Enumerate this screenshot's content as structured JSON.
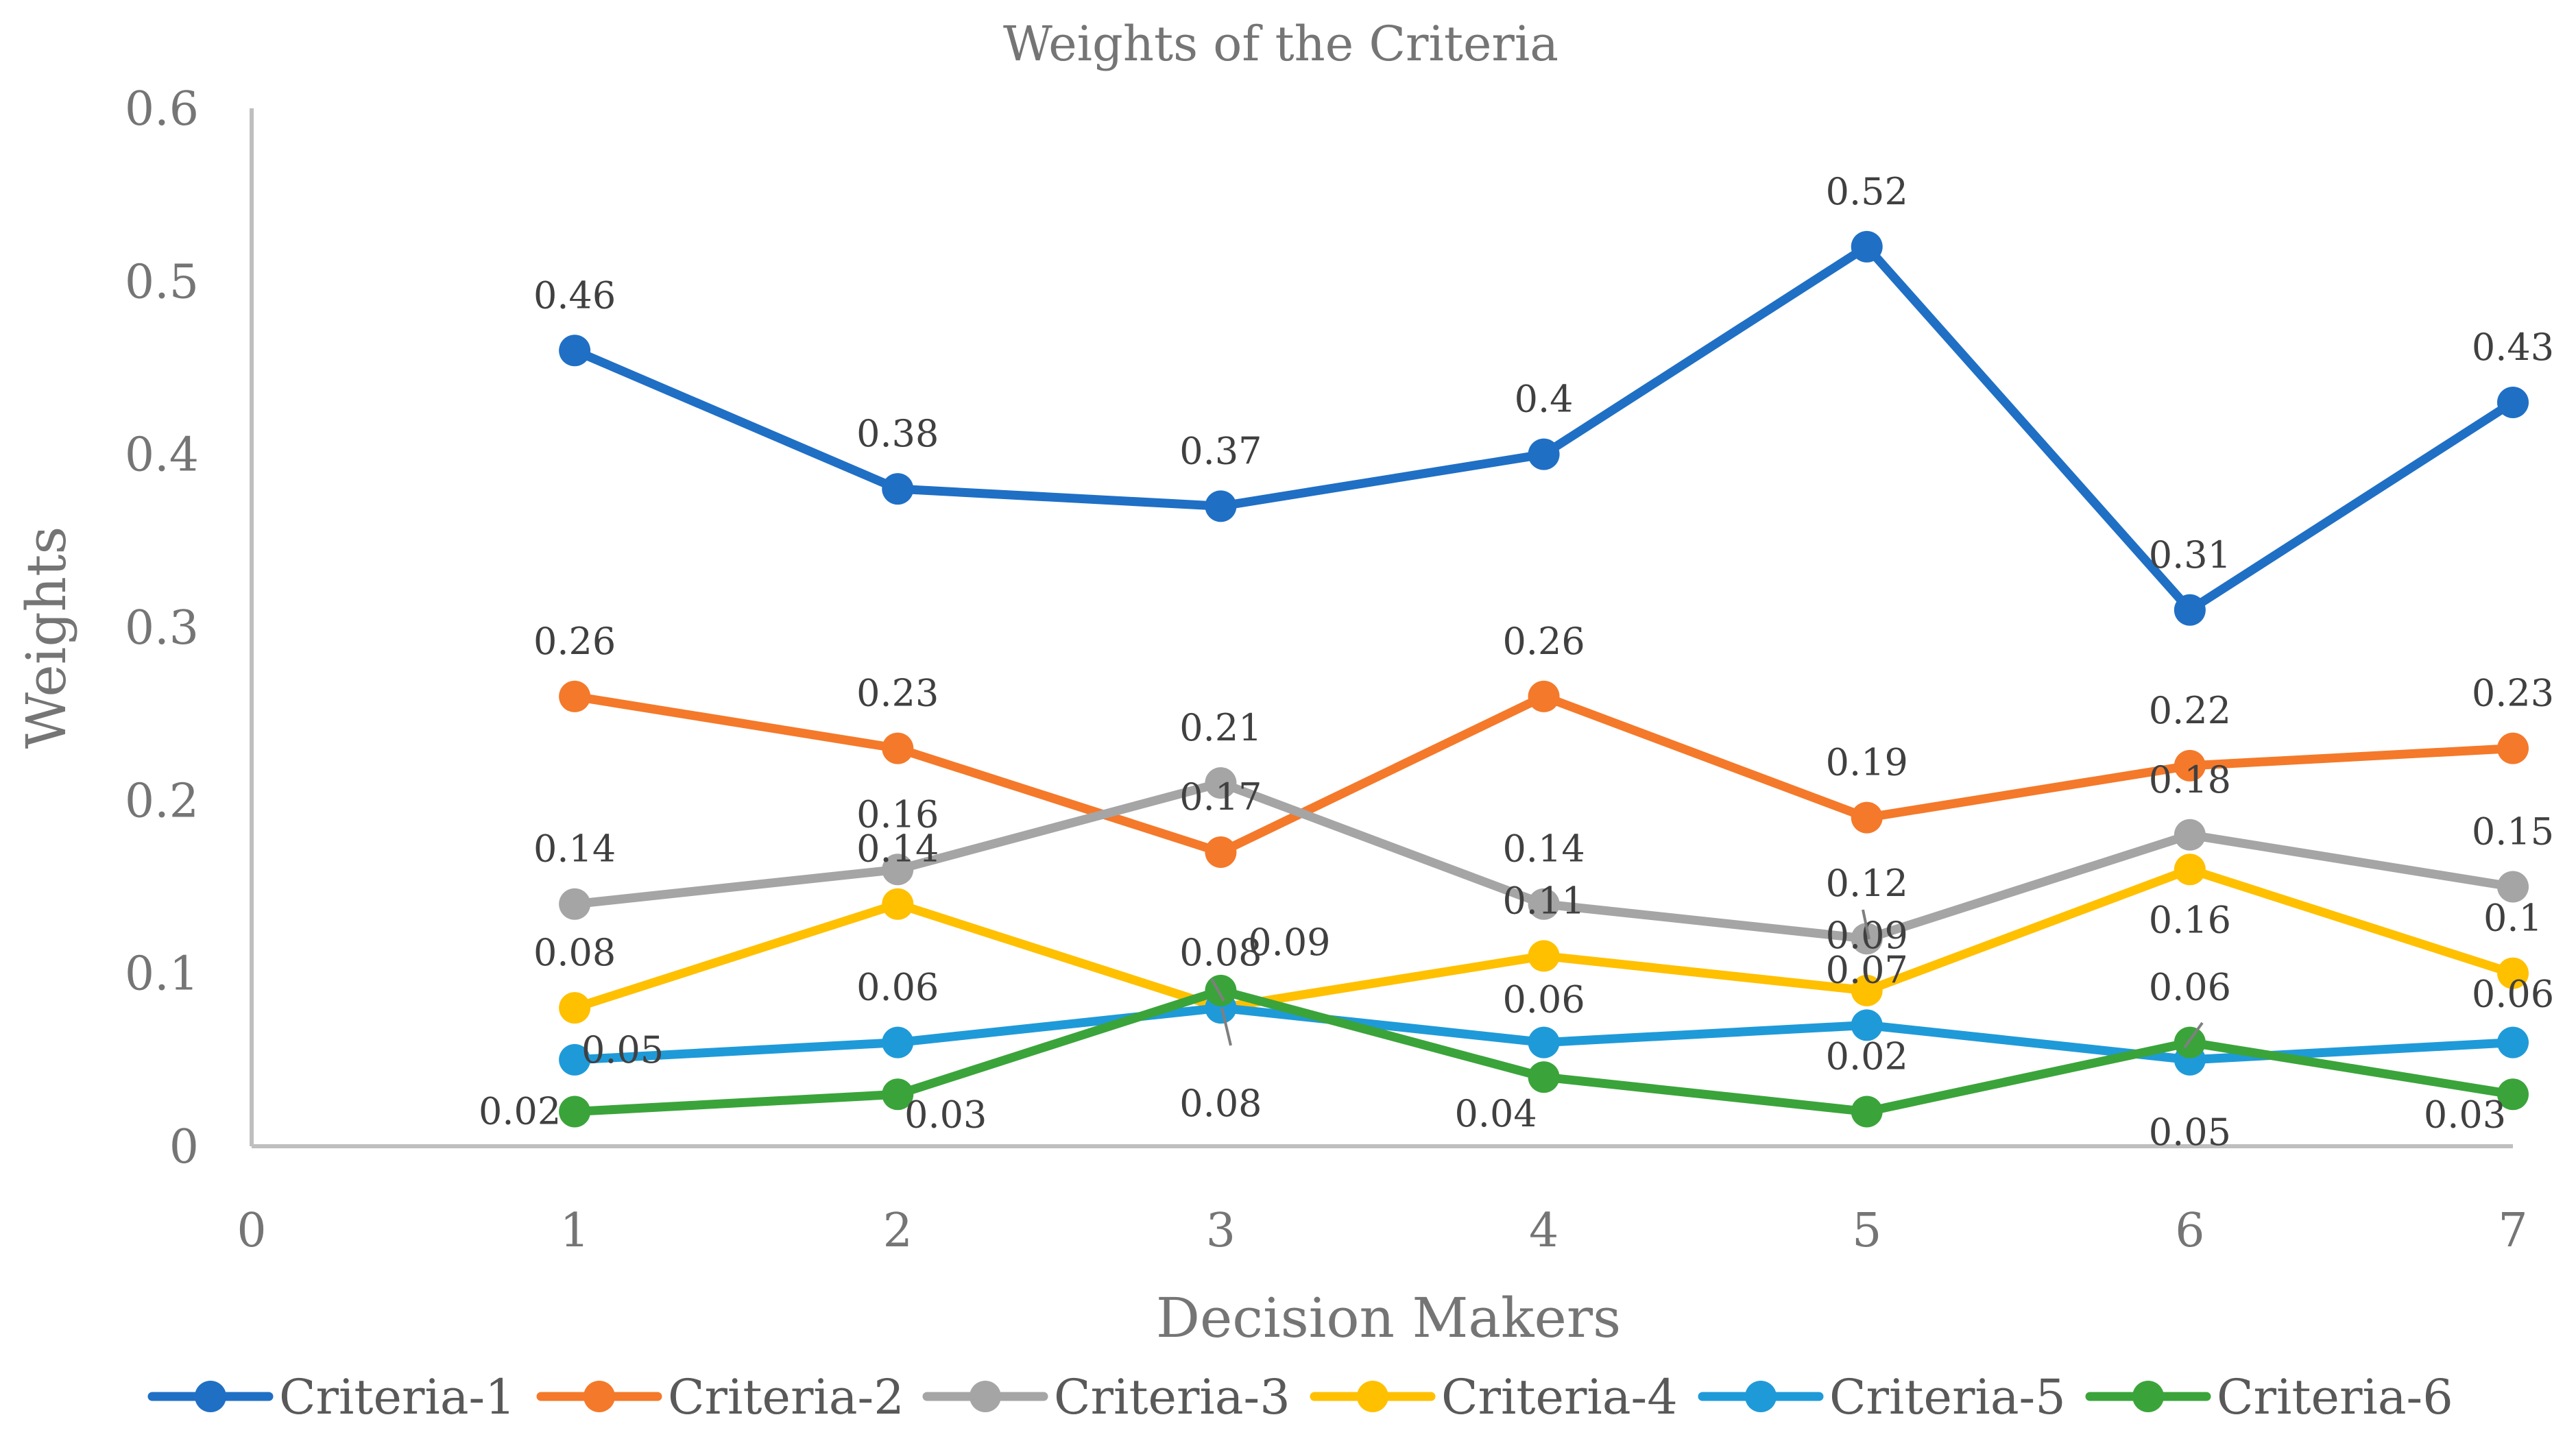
{
  "chart_data": {
    "type": "line",
    "title": "Weights of the Criteria",
    "xlabel": "Decision Makers",
    "ylabel": "Weights",
    "xlim": [
      0,
      7
    ],
    "ylim": [
      0,
      0.6
    ],
    "xticks": [
      "0",
      "1",
      "2",
      "3",
      "4",
      "5",
      "6",
      "7"
    ],
    "yticks": [
      "0",
      "0.1",
      "0.2",
      "0.3",
      "0.4",
      "0.5",
      "0.6"
    ],
    "grid": false,
    "legend": "bottom",
    "x": [
      1,
      2,
      3,
      4,
      5,
      6,
      7
    ],
    "series": [
      {
        "name": "Criteria-1",
        "color": "#1f6fc5",
        "values": [
          0.46,
          0.38,
          0.37,
          0.4,
          0.52,
          0.31,
          0.43
        ],
        "labels": [
          "0.46",
          "0.38",
          "0.37",
          "0.4",
          "0.52",
          "0.31",
          "0.43"
        ]
      },
      {
        "name": "Criteria-2",
        "color": "#f4792a",
        "values": [
          0.26,
          0.23,
          0.17,
          0.26,
          0.19,
          0.22,
          0.23
        ],
        "labels": [
          "0.26",
          "0.23",
          "0.17",
          "0.26",
          "0.19",
          "0.22",
          "0.23"
        ]
      },
      {
        "name": "Criteria-3",
        "color": "#a5a5a5",
        "values": [
          0.14,
          0.16,
          0.21,
          0.14,
          0.12,
          0.18,
          0.15
        ],
        "labels": [
          "0.14",
          "0.16",
          "0.21",
          "0.14",
          "0.12",
          "0.18",
          "0.15"
        ]
      },
      {
        "name": "Criteria-4",
        "color": "#ffc000",
        "values": [
          0.08,
          0.14,
          0.08,
          0.11,
          0.09,
          0.16,
          0.1
        ],
        "labels": [
          "0.08",
          "0.14",
          "0.08",
          "0.11",
          "0.09",
          "0.16",
          "0.1"
        ]
      },
      {
        "name": "Criteria-5",
        "color": "#1f9ad8",
        "values": [
          0.05,
          0.06,
          0.08,
          0.06,
          0.07,
          0.05,
          0.06
        ],
        "labels": [
          "0.05",
          "0.06",
          "0.08",
          "0.06",
          "0.07",
          "0.05",
          "0.06"
        ]
      },
      {
        "name": "Criteria-6",
        "color": "#3aa43a",
        "values": [
          0.02,
          0.03,
          0.09,
          0.04,
          0.02,
          0.06,
          0.03
        ],
        "labels": [
          "0.02",
          "0.03",
          "0.09",
          "0.04",
          "0.02",
          "0.06",
          "0.03"
        ]
      }
    ]
  }
}
